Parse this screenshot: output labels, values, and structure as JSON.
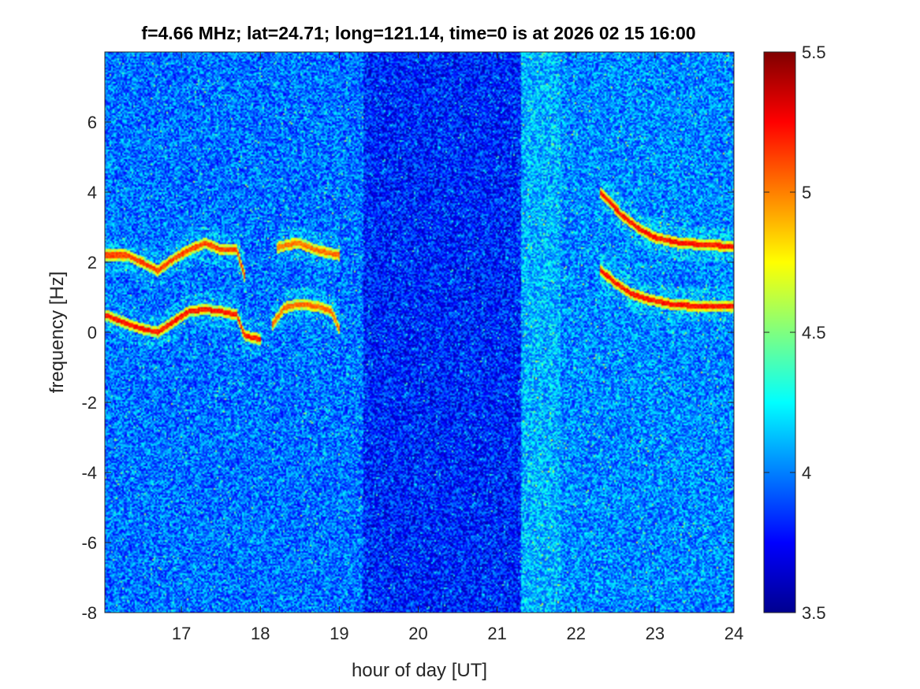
{
  "chart_data": {
    "type": "heatmap",
    "title": "f=4.66 MHz;  lat=24.71; long=121.14, time=0 is at 2026 02 15 16:00",
    "xlabel": "hour of day [UT]",
    "ylabel": "frequency [Hz]",
    "xlim": [
      16.03,
      24
    ],
    "ylim": [
      -8,
      8
    ],
    "x_ticks": [
      17,
      18,
      19,
      20,
      21,
      22,
      23,
      24
    ],
    "y_ticks": [
      -8,
      -6,
      -4,
      -2,
      0,
      2,
      4,
      6
    ],
    "colorbar": {
      "colormap": "jet",
      "clim": [
        3.5,
        5.5
      ],
      "ticks": [
        3.5,
        4,
        4.5,
        5,
        5.5
      ]
    },
    "background_bands": [
      {
        "x_start": 16.03,
        "x_end": 19.3,
        "level": 3.9
      },
      {
        "x_start": 19.3,
        "x_end": 21.3,
        "level": 3.72
      },
      {
        "x_start": 21.3,
        "x_end": 21.8,
        "level": 4.05
      },
      {
        "x_start": 21.8,
        "x_end": 24.0,
        "level": 3.95
      }
    ],
    "traces": [
      {
        "x": [
          16.03,
          16.3,
          16.5,
          16.7,
          16.9,
          17.1,
          17.3,
          17.5,
          17.7,
          17.8
        ],
        "y": [
          2.2,
          2.2,
          2.0,
          1.75,
          2.1,
          2.35,
          2.55,
          2.35,
          2.35,
          1.6
        ],
        "level": 5.3
      },
      {
        "x": [
          16.03,
          16.3,
          16.5,
          16.7,
          16.9,
          17.1,
          17.3,
          17.5,
          17.7,
          17.8,
          18.0
        ],
        "y": [
          0.5,
          0.25,
          0.1,
          0.0,
          0.3,
          0.6,
          0.65,
          0.6,
          0.5,
          -0.1,
          -0.2
        ],
        "level": 5.4
      },
      {
        "x": [
          18.2,
          18.35,
          18.5,
          18.7,
          18.9,
          19.0
        ],
        "y": [
          2.4,
          2.5,
          2.55,
          2.35,
          2.25,
          2.2
        ],
        "level": 5.2
      },
      {
        "x": [
          18.15,
          18.3,
          18.5,
          18.7,
          18.9,
          19.0
        ],
        "y": [
          0.2,
          0.7,
          0.8,
          0.75,
          0.6,
          0.1
        ],
        "level": 5.2
      },
      {
        "x": [
          22.3,
          22.6,
          22.8,
          23.0,
          23.3,
          23.6,
          24.0
        ],
        "y": [
          4.0,
          3.3,
          2.95,
          2.7,
          2.55,
          2.5,
          2.45
        ],
        "level": 5.4
      },
      {
        "x": [
          22.3,
          22.5,
          22.7,
          22.9,
          23.2,
          23.5,
          24.0
        ],
        "y": [
          1.8,
          1.4,
          1.1,
          0.95,
          0.8,
          0.75,
          0.75
        ],
        "level": 5.4
      }
    ]
  }
}
